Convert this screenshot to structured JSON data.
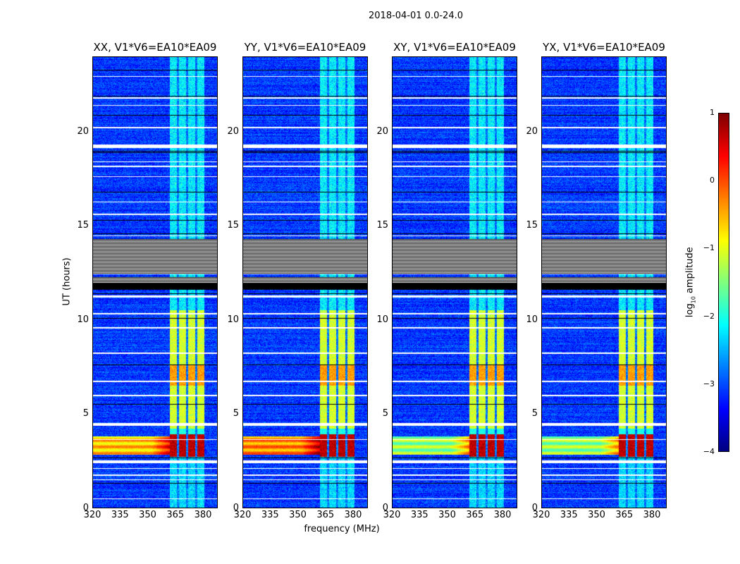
{
  "chart_data": {
    "type": "heatmap",
    "title": "2018-04-01 0.0-24.0",
    "xlabel": "frequency (MHz)",
    "ylabel": "UT (hours)",
    "xlim": [
      320,
      388
    ],
    "ylim": [
      0,
      24
    ],
    "xticks": [
      "320",
      "335",
      "350",
      "365",
      "380"
    ],
    "xtick_values": [
      320,
      335,
      350,
      365,
      380
    ],
    "yticks": [
      "0",
      "5",
      "10",
      "15",
      "20"
    ],
    "ytick_values": [
      0,
      5,
      10,
      15,
      20
    ],
    "panels": [
      {
        "title": "XX, V1*V6=EA10*EA09",
        "broadband_level": -0.6
      },
      {
        "title": "YY, V1*V6=EA10*EA09",
        "broadband_level": -0.3
      },
      {
        "title": "XY, V1*V6=EA10*EA09",
        "broadband_level": -1.4
      },
      {
        "title": "YX, V1*V6=EA10*EA09",
        "broadband_level": -1.4
      }
    ],
    "features": {
      "background_level": -3.1,
      "rfi_channels_mhz": [
        [
          362,
          366
        ],
        [
          367,
          371
        ],
        [
          372,
          376
        ],
        [
          377,
          381
        ]
      ],
      "rfi_levels": [
        {
          "hours": [
            0,
            2.7
          ],
          "level": -2.3
        },
        {
          "hours": [
            2.7,
            3.9
          ],
          "level": 0.7
        },
        {
          "hours": [
            3.9,
            4.2
          ],
          "level": -2.0
        },
        {
          "hours": [
            4.2,
            6.5
          ],
          "level": -1.1
        },
        {
          "hours": [
            6.5,
            7.6
          ],
          "level": -0.4
        },
        {
          "hours": [
            7.6,
            10.5
          ],
          "level": -1.1
        },
        {
          "hours": [
            10.5,
            24
          ],
          "level": -2.2
        }
      ],
      "broadband_hours": [
        2.8,
        3.8
      ],
      "flagged_hours": [
        [
          0.45,
          0.5
        ],
        [
          1.45,
          1.5
        ],
        [
          1.7,
          1.75
        ],
        [
          2.05,
          2.1
        ],
        [
          2.35,
          2.5
        ],
        [
          3.6,
          3.65
        ],
        [
          4.35,
          4.5
        ],
        [
          5.95,
          6.0
        ],
        [
          6.7,
          6.75
        ],
        [
          8.2,
          8.25
        ],
        [
          9.55,
          9.6
        ],
        [
          10.3,
          10.35
        ],
        [
          11.2,
          11.3
        ],
        [
          14.45,
          14.5
        ],
        [
          15.6,
          15.65
        ],
        [
          16.25,
          16.3
        ],
        [
          17.6,
          17.65
        ],
        [
          18.15,
          18.2
        ],
        [
          18.4,
          18.45
        ],
        [
          19.15,
          19.35
        ],
        [
          20.2,
          20.3
        ],
        [
          21.4,
          21.45
        ],
        [
          21.8,
          21.85
        ],
        [
          22.95,
          23.0
        ]
      ],
      "blank_hours": [
        [
          11.6,
          12.3
        ],
        [
          12.45,
          14.3
        ]
      ],
      "black_lines": [
        1.3,
        2.65,
        5.5,
        7.6,
        10.1,
        11.4,
        14.6,
        15.3,
        16.8,
        18.9,
        19.0,
        20.9,
        21.9,
        23.3
      ]
    },
    "colorbar": {
      "label": "log10 amplitude",
      "label_main": "log",
      "label_sub": "10",
      "label_rest": " amplitude",
      "range": [
        -4,
        1
      ],
      "ticks": [
        "1",
        "0",
        "−1",
        "−2",
        "−3",
        "−4"
      ],
      "tick_values": [
        1,
        0,
        -1,
        -2,
        -3,
        -4
      ],
      "colormap": "jet"
    }
  }
}
